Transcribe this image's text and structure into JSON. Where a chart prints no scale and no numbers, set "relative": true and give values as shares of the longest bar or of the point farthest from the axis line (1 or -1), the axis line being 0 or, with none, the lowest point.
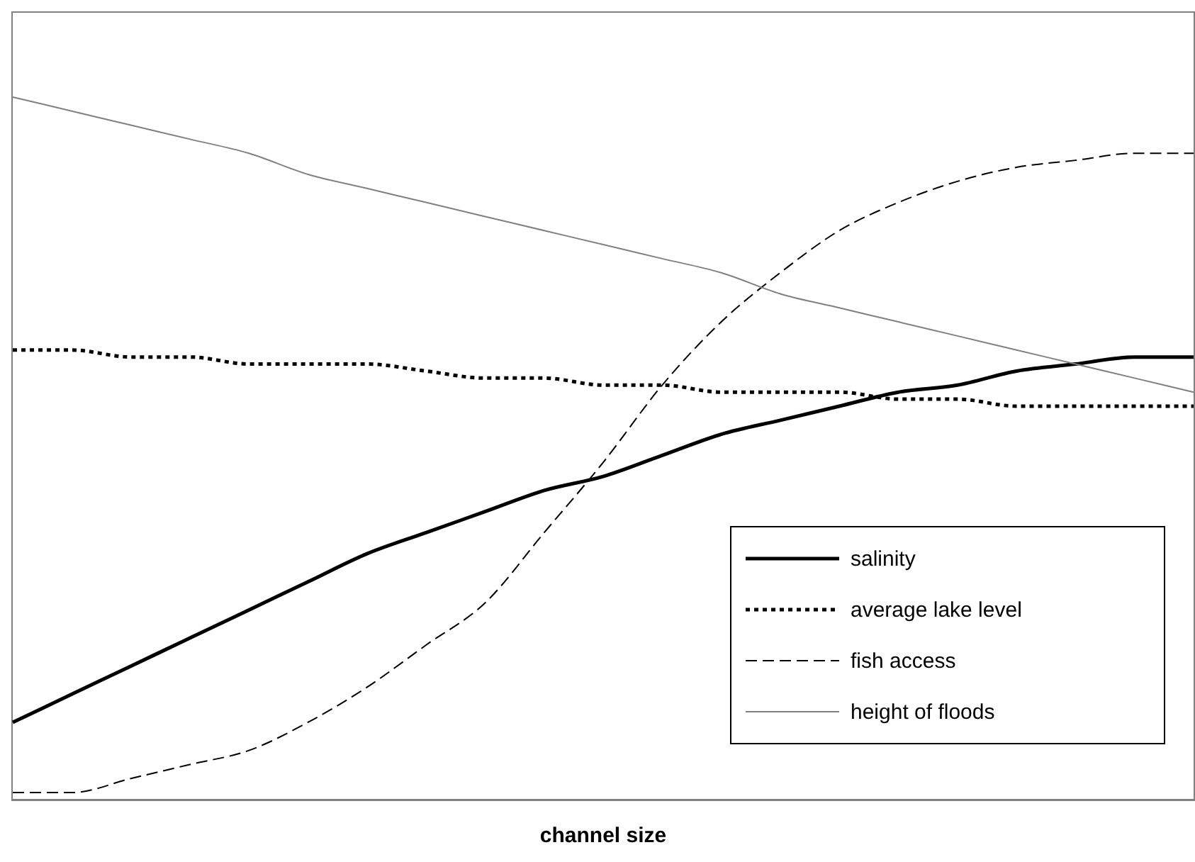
{
  "chart_data": {
    "type": "line",
    "relative": true,
    "xlabel": "channel size",
    "legend": "bottom right",
    "categories": [
      null,
      null,
      null,
      null,
      null,
      null,
      null,
      null,
      null,
      null,
      null,
      null,
      null,
      null,
      null,
      null,
      null,
      null,
      null,
      null,
      null
    ],
    "series": [
      {
        "name": "salinity",
        "color": "#000000",
        "line_style": "solid",
        "values": [
          0.11,
          0.15,
          0.19,
          0.23,
          0.27,
          0.31,
          0.35,
          0.38,
          0.41,
          0.44,
          0.46,
          0.49,
          0.52,
          0.54,
          0.56,
          0.58,
          0.59,
          0.61,
          0.62,
          0.63,
          0.63
        ]
      },
      {
        "name": "average lake level",
        "color": "#000000",
        "line_style": "dotted",
        "values": [
          0.64,
          0.64,
          0.63,
          0.63,
          0.62,
          0.62,
          0.62,
          0.61,
          0.6,
          0.6,
          0.59,
          0.59,
          0.58,
          0.58,
          0.58,
          0.57,
          0.57,
          0.56,
          0.56,
          0.56,
          0.56
        ]
      },
      {
        "name": "fish access",
        "color": "#000000",
        "line_style": "dashed",
        "values": [
          0.01,
          0.01,
          0.03,
          0.05,
          0.07,
          0.11,
          0.16,
          0.22,
          0.28,
          0.38,
          0.48,
          0.59,
          0.68,
          0.75,
          0.81,
          0.85,
          0.88,
          0.9,
          0.91,
          0.92,
          0.92
        ]
      },
      {
        "name": "height of floods",
        "color": "#808080",
        "line_style": "solid",
        "values": [
          1,
          0.98,
          0.96,
          0.94,
          0.92,
          0.89,
          0.87,
          0.85,
          0.83,
          0.81,
          0.79,
          0.77,
          0.75,
          0.72,
          0.7,
          0.68,
          0.66,
          0.64,
          0.62,
          0.6,
          0.58
        ]
      }
    ]
  }
}
